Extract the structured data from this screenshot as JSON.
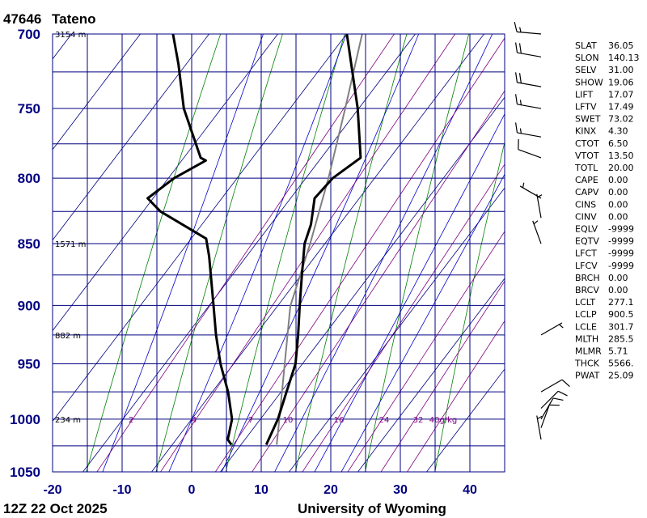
{
  "header": {
    "station_id": "47646",
    "station_name": "Tateno"
  },
  "footer": {
    "time": "12Z 22 Oct 2025",
    "source": "University of Wyoming"
  },
  "chart_data": {
    "type": "skew-t",
    "pressure_levels": [
      700,
      750,
      800,
      850,
      900,
      950,
      1000,
      1050
    ],
    "extra_grid_levels": [
      725,
      775,
      825,
      875,
      925,
      975,
      1025
    ],
    "x_ticks": [
      -20,
      -10,
      0,
      10,
      20,
      30,
      40
    ],
    "x_range": [
      -20,
      45
    ],
    "p_range": [
      700,
      1050
    ],
    "height_labels": [
      {
        "p": 700,
        "label": "3154 m"
      },
      {
        "p": 850,
        "label": "1571 m"
      },
      {
        "p": 925,
        "label": "882 m"
      },
      {
        "p": 1000,
        "label": "234 m"
      }
    ],
    "mixing_ratio_labels": [
      "2",
      "4",
      "7",
      "10",
      "16",
      "24",
      "32",
      "40g/kg"
    ],
    "mixing_ratios": [
      2,
      4,
      7,
      10,
      16,
      24,
      32,
      40
    ],
    "dry_adiabats_K": [
      260,
      270,
      280,
      290,
      300,
      310,
      320,
      330,
      340,
      350
    ],
    "moist_adiabats_C": [
      -10,
      0,
      8,
      16,
      22,
      26
    ],
    "temperature": [
      {
        "p": 1024,
        "t": 13.0
      },
      {
        "p": 1000,
        "t": 12.4
      },
      {
        "p": 975,
        "t": 11.2
      },
      {
        "p": 950,
        "t": 10.0
      },
      {
        "p": 925,
        "t": 7.8
      },
      {
        "p": 900,
        "t": 5.4
      },
      {
        "p": 875,
        "t": 3.0
      },
      {
        "p": 850,
        "t": 0.6
      },
      {
        "p": 835,
        "t": -0.2
      },
      {
        "p": 815,
        "t": -2.0
      },
      {
        "p": 800,
        "t": -1.2
      },
      {
        "p": 785,
        "t": 1.0
      },
      {
        "p": 750,
        "t": -3.8
      },
      {
        "p": 700,
        "t": -12.0
      }
    ],
    "dewpoint": [
      {
        "p": 1024,
        "t": 8.0
      },
      {
        "p": 1019,
        "t": 7.0
      },
      {
        "p": 1000,
        "t": 5.8
      },
      {
        "p": 975,
        "t": 2.8
      },
      {
        "p": 950,
        "t": -0.8
      },
      {
        "p": 925,
        "t": -4.0
      },
      {
        "p": 900,
        "t": -7.0
      },
      {
        "p": 860,
        "t": -12.0
      },
      {
        "p": 846,
        "t": -14.0
      },
      {
        "p": 825,
        "t": -23.0
      },
      {
        "p": 815,
        "t": -26.0
      },
      {
        "p": 800,
        "t": -24.0
      },
      {
        "p": 787,
        "t": -21.0
      },
      {
        "p": 785,
        "t": -22.0
      },
      {
        "p": 750,
        "t": -28.8
      },
      {
        "p": 720,
        "t": -33.5
      },
      {
        "p": 700,
        "t": -37.0
      }
    ],
    "parcel": [
      {
        "p": 1024,
        "t": 14.5
      },
      {
        "p": 1000,
        "t": 12.6
      },
      {
        "p": 900.5,
        "t": 4.1
      },
      {
        "p": 850,
        "t": 1.4
      },
      {
        "p": 800,
        "t": -1.8
      },
      {
        "p": 750,
        "t": -5.6
      },
      {
        "p": 700,
        "t": -9.8
      }
    ],
    "wind_barbs": [
      {
        "p": 1019,
        "dir": 350,
        "kt": 5
      },
      {
        "p": 1008,
        "dir": 20,
        "kt": 10
      },
      {
        "p": 1000,
        "dir": 30,
        "kt": 10
      },
      {
        "p": 990,
        "dir": 45,
        "kt": 10
      },
      {
        "p": 975,
        "dir": 60,
        "kt": 10
      },
      {
        "p": 925,
        "dir": 60,
        "kt": 5
      },
      {
        "p": 850,
        "dir": 340,
        "kt": 5
      },
      {
        "p": 830,
        "dir": 350,
        "kt": 5
      },
      {
        "p": 815,
        "dir": 300,
        "kt": 5
      },
      {
        "p": 785,
        "dir": 290,
        "kt": 10
      },
      {
        "p": 770,
        "dir": 280,
        "kt": 15
      },
      {
        "p": 750,
        "dir": 280,
        "kt": 15
      },
      {
        "p": 735,
        "dir": 280,
        "kt": 20
      },
      {
        "p": 715,
        "dir": 280,
        "kt": 20
      },
      {
        "p": 700,
        "dir": 275,
        "kt": 15
      }
    ]
  },
  "indices": [
    {
      "key": "SLAT",
      "value": "36.05"
    },
    {
      "key": "SLON",
      "value": "140.13"
    },
    {
      "key": "SELV",
      "value": "31.00"
    },
    {
      "key": "SHOW",
      "value": "19.06"
    },
    {
      "key": "LIFT",
      "value": "17.07"
    },
    {
      "key": "LFTV",
      "value": "17.49"
    },
    {
      "key": "SWET",
      "value": "73.02"
    },
    {
      "key": "KINX",
      "value": "4.30"
    },
    {
      "key": "CTOT",
      "value": "6.50"
    },
    {
      "key": "VTOT",
      "value": "13.50"
    },
    {
      "key": "TOTL",
      "value": "20.00"
    },
    {
      "key": "CAPE",
      "value": "0.00"
    },
    {
      "key": "CAPV",
      "value": "0.00"
    },
    {
      "key": "CINS",
      "value": "0.00"
    },
    {
      "key": "CINV",
      "value": "0.00"
    },
    {
      "key": "EQLV",
      "value": "-9999"
    },
    {
      "key": "EQTV",
      "value": "-9999"
    },
    {
      "key": "LFCT",
      "value": "-9999"
    },
    {
      "key": "LFCV",
      "value": "-9999"
    },
    {
      "key": "BRCH",
      "value": "0.00"
    },
    {
      "key": "BRCV",
      "value": "0.00"
    },
    {
      "key": "LCLT",
      "value": "277.1"
    },
    {
      "key": "LCLP",
      "value": "900.5"
    },
    {
      "key": "LCLE",
      "value": "301.7"
    },
    {
      "key": "MLTH",
      "value": "285.5"
    },
    {
      "key": "MLMR",
      "value": "5.71"
    },
    {
      "key": "THCK",
      "value": "5566."
    },
    {
      "key": "PWAT",
      "value": "25.09"
    }
  ],
  "colors": {
    "grid": "#000080",
    "isotherm": "#000080",
    "dry_adiabat": "#008000",
    "moist_adiabat": "#0000cc",
    "mixing_ratio": "#800080",
    "temperature": "#000000",
    "dewpoint": "#000000",
    "parcel": "#808080",
    "labels": "#000080"
  }
}
